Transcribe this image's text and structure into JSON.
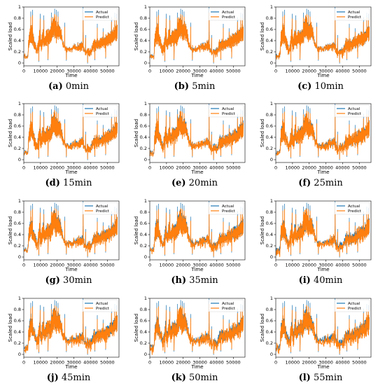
{
  "chart_data": [
    {
      "type": "line",
      "caption_letter": "(a)",
      "caption_text": "0min",
      "noise": 0.01,
      "seed": 11
    },
    {
      "type": "line",
      "caption_letter": "(b)",
      "caption_text": "5min",
      "noise": 0.015,
      "seed": 23
    },
    {
      "type": "line",
      "caption_letter": "(c)",
      "caption_text": "10min",
      "noise": 0.02,
      "seed": 37
    },
    {
      "type": "line",
      "caption_letter": "(d)",
      "caption_text": "15min",
      "noise": 0.025,
      "seed": 41
    },
    {
      "type": "line",
      "caption_letter": "(e)",
      "caption_text": "20min",
      "noise": 0.03,
      "seed": 53
    },
    {
      "type": "line",
      "caption_letter": "(f)",
      "caption_text": "25min",
      "noise": 0.035,
      "seed": 67
    },
    {
      "type": "line",
      "caption_letter": "(g)",
      "caption_text": "30min",
      "noise": 0.04,
      "seed": 71
    },
    {
      "type": "line",
      "caption_letter": "(h)",
      "caption_text": "35min",
      "noise": 0.045,
      "seed": 83
    },
    {
      "type": "line",
      "caption_letter": "(i)",
      "caption_text": "40min",
      "noise": 0.05,
      "seed": 97
    },
    {
      "type": "line",
      "caption_letter": "(j)",
      "caption_text": "45min",
      "noise": 0.055,
      "seed": 101
    },
    {
      "type": "line",
      "caption_letter": "(k)",
      "caption_text": "50min",
      "noise": 0.06,
      "seed": 113
    },
    {
      "type": "line",
      "caption_letter": "(l)",
      "caption_text": "55min",
      "noise": 0.065,
      "seed": 127
    }
  ],
  "shared": {
    "xlabel": "Time",
    "ylabel": "Scaled load",
    "xlim": [
      0,
      57000
    ],
    "ylim": [
      -0.05,
      1.0
    ],
    "x_ticks": [
      0,
      10000,
      20000,
      30000,
      40000,
      50000
    ],
    "y_ticks": [
      0.0,
      0.2,
      0.4,
      0.6,
      0.8,
      1.0
    ],
    "grid": false,
    "legend_position": "top-right",
    "series": [
      {
        "name": "Actual",
        "color": "#1f77b4"
      },
      {
        "name": "Predict",
        "color": "#ff7f0e"
      }
    ],
    "trend_x": [
      0,
      1500,
      2500,
      3000,
      4500,
      5500,
      8000,
      9500,
      10500,
      11500,
      12500,
      13500,
      15000,
      16000,
      17000,
      18500,
      19500,
      20500,
      21500,
      22500,
      23500,
      25000,
      27000,
      30000,
      33000,
      35000,
      36000,
      37000,
      38000,
      39000,
      40000,
      41000,
      42000,
      45000,
      47000,
      48000,
      50000,
      52000,
      53000,
      54000,
      55000,
      56000
    ],
    "trend_lo": [
      0.08,
      0.07,
      0.07,
      0.28,
      0.35,
      0.3,
      0.12,
      0.3,
      0.18,
      0.32,
      0.25,
      0.3,
      0.32,
      0.3,
      0.4,
      0.5,
      0.35,
      0.45,
      0.4,
      0.38,
      0.25,
      0.2,
      0.18,
      0.2,
      0.2,
      0.22,
      0.18,
      0.1,
      0.15,
      0.12,
      0.1,
      0.18,
      0.2,
      0.22,
      0.25,
      0.25,
      0.28,
      0.3,
      0.32,
      0.35,
      0.38,
      0.4
    ],
    "trend_hi": [
      0.18,
      0.17,
      0.2,
      0.55,
      0.75,
      0.55,
      0.3,
      0.65,
      0.45,
      0.65,
      0.5,
      0.6,
      0.62,
      0.62,
      0.8,
      0.9,
      0.7,
      0.78,
      0.72,
      0.6,
      0.4,
      0.32,
      0.3,
      0.35,
      0.38,
      0.42,
      0.35,
      0.22,
      0.3,
      0.3,
      0.28,
      0.35,
      0.45,
      0.45,
      0.48,
      0.5,
      0.55,
      0.58,
      0.6,
      0.65,
      0.7,
      0.72
    ],
    "spikes": [
      {
        "x": 4200,
        "y": 0.92
      },
      {
        "x": 5200,
        "y": 0.95
      },
      {
        "x": 9800,
        "y": 0.88
      },
      {
        "x": 12000,
        "y": 0.85
      },
      {
        "x": 16500,
        "y": 0.9
      },
      {
        "x": 18500,
        "y": 0.97
      },
      {
        "x": 19500,
        "y": 0.95
      },
      {
        "x": 20500,
        "y": 0.92
      },
      {
        "x": 24500,
        "y": 0.72
      },
      {
        "x": 35500,
        "y": 1.0
      },
      {
        "x": 37000,
        "y": 0.5
      },
      {
        "x": 44000,
        "y": 0.7
      },
      {
        "x": 47500,
        "y": 0.62
      },
      {
        "x": 52500,
        "y": 0.82
      },
      {
        "x": 54500,
        "y": 0.9
      },
      {
        "x": 55500,
        "y": 0.88
      }
    ],
    "dips": [
      {
        "x": 9000,
        "y": 0.02
      },
      {
        "x": 14500,
        "y": 0.05
      },
      {
        "x": 25500,
        "y": 0.04
      },
      {
        "x": 38200,
        "y": -0.01
      },
      {
        "x": 42500,
        "y": 0.05
      },
      {
        "x": 49000,
        "y": 0.08
      }
    ]
  }
}
